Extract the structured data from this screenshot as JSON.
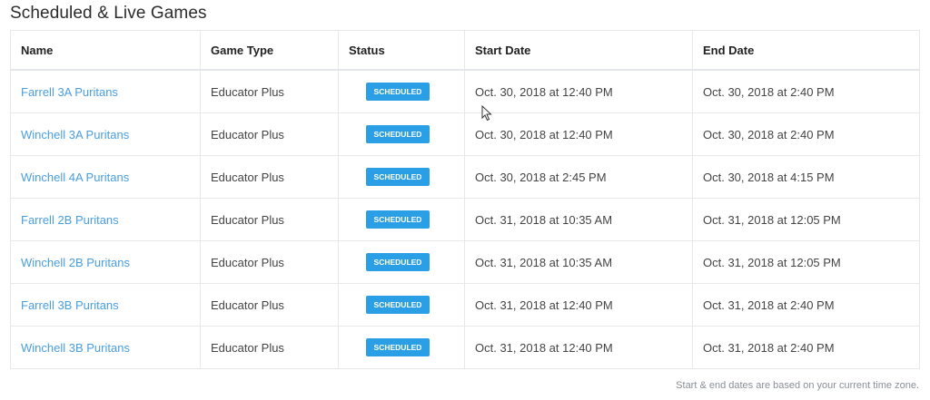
{
  "title": "Scheduled & Live Games",
  "columns": [
    "Name",
    "Game Type",
    "Status",
    "Start Date",
    "End Date"
  ],
  "rows": [
    {
      "name": "Farrell 3A Puritans",
      "type": "Educator Plus",
      "status": "SCHEDULED",
      "start": "Oct. 30, 2018 at 12:40 PM",
      "end": "Oct. 30, 2018 at 2:40 PM"
    },
    {
      "name": "Winchell 3A Puritans",
      "type": "Educator Plus",
      "status": "SCHEDULED",
      "start": "Oct. 30, 2018 at 12:40 PM",
      "end": "Oct. 30, 2018 at 2:40 PM"
    },
    {
      "name": "Winchell 4A Puritans",
      "type": "Educator Plus",
      "status": "SCHEDULED",
      "start": "Oct. 30, 2018 at 2:45 PM",
      "end": "Oct. 30, 2018 at 4:15 PM"
    },
    {
      "name": "Farrell 2B Puritans",
      "type": "Educator Plus",
      "status": "SCHEDULED",
      "start": "Oct. 31, 2018 at 10:35 AM",
      "end": "Oct. 31, 2018 at 12:05 PM"
    },
    {
      "name": "Winchell 2B Puritans",
      "type": "Educator Plus",
      "status": "SCHEDULED",
      "start": "Oct. 31, 2018 at 10:35 AM",
      "end": "Oct. 31, 2018 at 12:05 PM"
    },
    {
      "name": "Farrell 3B Puritans",
      "type": "Educator Plus",
      "status": "SCHEDULED",
      "start": "Oct. 31, 2018 at 12:40 PM",
      "end": "Oct. 31, 2018 at 2:40 PM"
    },
    {
      "name": "Winchell 3B Puritans",
      "type": "Educator Plus",
      "status": "SCHEDULED",
      "start": "Oct. 31, 2018 at 12:40 PM",
      "end": "Oct. 31, 2018 at 2:40 PM"
    }
  ],
  "footnote": "Start & end dates are based on your current time zone.",
  "colors": {
    "link": "#4a9ee0",
    "badge": "#2a9fe6"
  },
  "cursor_icon": "mouse-pointer-icon"
}
